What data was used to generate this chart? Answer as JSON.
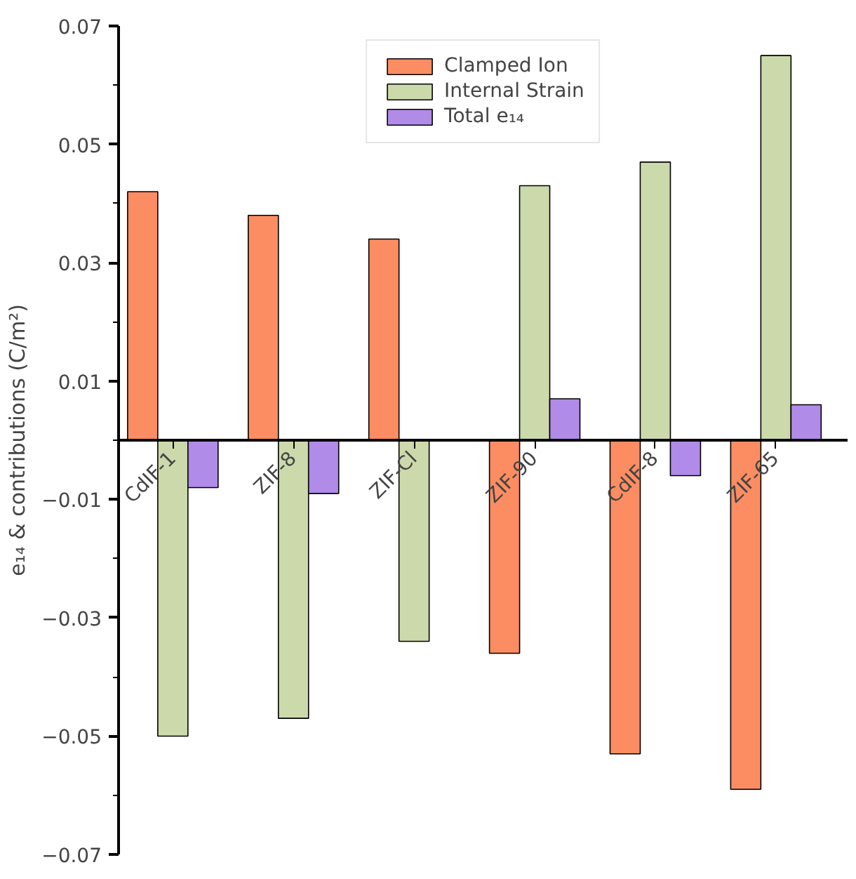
{
  "chart_data": {
    "type": "bar",
    "ylabel": "e₁₄ & contributions (C/m²)",
    "categories": [
      "CdIF-1",
      "ZIF-8",
      "ZIF-Cl",
      "ZIF-90",
      "CdIF-8",
      "ZIF-65"
    ],
    "series": [
      {
        "name": "Clamped Ion",
        "color": "#fc8d62",
        "values": [
          0.042,
          0.038,
          0.034,
          -0.036,
          -0.053,
          -0.059
        ]
      },
      {
        "name": "Internal Strain",
        "color": "#ccd9ab",
        "values": [
          -0.05,
          -0.047,
          -0.034,
          0.043,
          0.047,
          0.065
        ]
      },
      {
        "name": "Total e₁₄",
        "color": "#b08be8",
        "values": [
          -0.008,
          -0.009,
          null,
          0.007,
          -0.006,
          0.006
        ]
      }
    ],
    "ylim": [
      -0.07,
      0.07
    ],
    "yticks": [
      0.07,
      {
        "value": 0.06,
        "label": null
      },
      0.05,
      {
        "value": 0.04,
        "label": null
      },
      0.03,
      {
        "value": 0.02,
        "label": null
      },
      0.01,
      {
        "value": 0.0,
        "label": null
      },
      -0.01,
      {
        "value": -0.02,
        "label": null
      },
      -0.03,
      {
        "value": -0.04,
        "label": null
      },
      -0.05,
      {
        "value": -0.06,
        "label": null
      },
      -0.07
    ],
    "grid": false,
    "legend": "top"
  }
}
